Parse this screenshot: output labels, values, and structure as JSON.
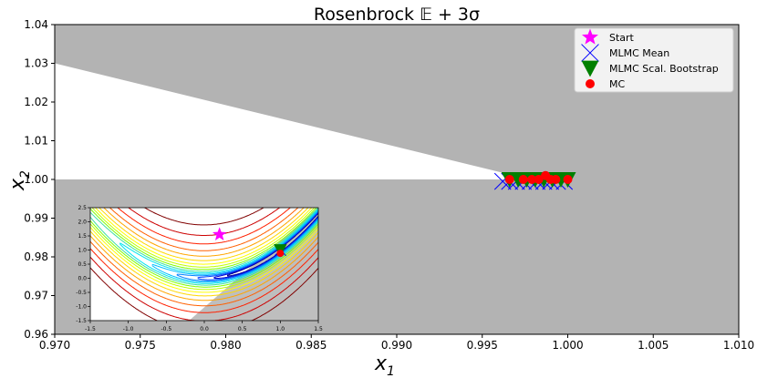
{
  "chart_data": {
    "type": "scatter",
    "title": "Rosenbrock 𝔼 + 3σ",
    "xlabel": "x",
    "xlabel_sub": "1",
    "ylabel": "x",
    "ylabel_sub": "2",
    "xlim": [
      0.97,
      1.01
    ],
    "ylim": [
      0.96,
      1.04
    ],
    "xticks": [
      "0.970",
      "0.975",
      "0.980",
      "0.985",
      "0.990",
      "0.995",
      "1.000",
      "1.005",
      "1.010"
    ],
    "yticks": [
      "0.96",
      "0.97",
      "0.98",
      "0.99",
      "1.00",
      "1.01",
      "1.02",
      "1.03",
      "1.04"
    ],
    "legend_position": "top-right",
    "colors": {
      "infeasible": "#b3b3b3",
      "feasible": "#ffffff",
      "start": "#ff00ff",
      "mlmc_mean": "#0000ff",
      "mlmc_bootstrap": "#008000",
      "mc": "#ff0000"
    },
    "series": [
      {
        "name": "Start",
        "marker": "star",
        "points": []
      },
      {
        "name": "MLMC Mean",
        "marker": "x",
        "points": [
          [
            0.9962,
            0.9995
          ],
          [
            0.9966,
            0.9995
          ],
          [
            0.997,
            0.9995
          ],
          [
            0.9974,
            0.9995
          ],
          [
            0.9978,
            0.9995
          ],
          [
            0.9982,
            0.9995
          ],
          [
            0.9986,
            0.9995
          ],
          [
            0.999,
            0.9995
          ],
          [
            0.9994,
            0.9995
          ],
          [
            0.9998,
            0.9995
          ]
        ]
      },
      {
        "name": "MLMC Scal.  Bootstrap",
        "marker": "triangle-down",
        "points": [
          [
            0.9966,
            1.0
          ],
          [
            0.9971,
            1.0
          ],
          [
            0.9976,
            1.0
          ],
          [
            0.9981,
            1.0
          ],
          [
            0.9986,
            1.0
          ],
          [
            0.9991,
            1.0
          ],
          [
            0.9996,
            1.0
          ],
          [
            1.0,
            1.0
          ]
        ]
      },
      {
        "name": "MC",
        "marker": "circle",
        "points": [
          [
            0.9966,
            1.0
          ],
          [
            0.9974,
            1.0
          ],
          [
            0.9979,
            1.0
          ],
          [
            0.9983,
            1.0
          ],
          [
            0.9987,
            1.001
          ],
          [
            0.999,
            1.0
          ],
          [
            0.9993,
            1.0
          ],
          [
            1.0,
            1.0
          ]
        ]
      }
    ],
    "inset": {
      "xlim": [
        -1.5,
        1.5
      ],
      "ylim": [
        -1.5,
        2.5
      ],
      "xticks": [
        "-1.5",
        "-1.0",
        "-0.5",
        "0.0",
        "0.5",
        "1.0",
        "1.5"
      ],
      "yticks": [
        "-1.5",
        "-1.0",
        "-0.5",
        "0.0",
        "0.5",
        "1.0",
        "1.5",
        "2.0",
        "2.5"
      ],
      "start": [
        0.2,
        1.55
      ],
      "optimum": [
        1.0,
        1.0
      ],
      "mc_point": [
        1.0,
        0.98
      ]
    }
  }
}
